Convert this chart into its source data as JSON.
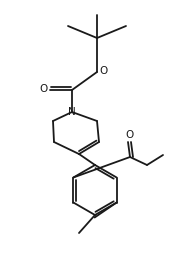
{
  "background_color": "#ffffff",
  "line_color": "#1a1a1a",
  "line_width": 1.3,
  "figsize": [
    1.8,
    2.63
  ],
  "dpi": 100,
  "xlim": [
    0,
    180
  ],
  "ylim": [
    0,
    263
  ]
}
